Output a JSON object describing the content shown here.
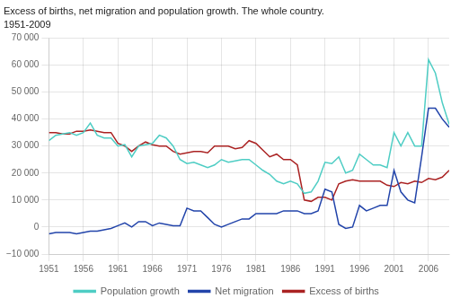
{
  "chart_data": {
    "type": "line",
    "title": "Excess of births, net migration and population growth. The whole country.",
    "subtitle": "1951-2009",
    "x": [
      1951,
      1952,
      1953,
      1954,
      1955,
      1956,
      1957,
      1958,
      1959,
      1960,
      1961,
      1962,
      1963,
      1964,
      1965,
      1966,
      1967,
      1968,
      1969,
      1970,
      1971,
      1972,
      1973,
      1974,
      1975,
      1976,
      1977,
      1978,
      1979,
      1980,
      1981,
      1982,
      1983,
      1984,
      1985,
      1986,
      1987,
      1988,
      1989,
      1990,
      1991,
      1992,
      1993,
      1994,
      1995,
      1996,
      1997,
      1998,
      1999,
      2000,
      2001,
      2002,
      2003,
      2004,
      2005,
      2006,
      2007,
      2008,
      2009
    ],
    "series": [
      {
        "name": "Population growth",
        "color": "#4ECDC4",
        "values": [
          32000,
          34000,
          34500,
          35000,
          34000,
          35000,
          38500,
          34000,
          33000,
          33000,
          30000,
          30500,
          26000,
          30000,
          30500,
          31000,
          34000,
          33000,
          30000,
          25000,
          23500,
          24000,
          23000,
          22000,
          23000,
          25000,
          24000,
          24500,
          25000,
          25000,
          23000,
          21000,
          19500,
          17000,
          16000,
          17000,
          16000,
          12500,
          13000,
          17000,
          24000,
          23500,
          26000,
          20000,
          21000,
          27000,
          25000,
          23000,
          23000,
          22000,
          35000,
          30000,
          35000,
          30000,
          30000,
          62000,
          57000,
          46000,
          38000
        ]
      },
      {
        "name": "Net migration",
        "color": "#2244AA",
        "values": [
          -2500,
          -2000,
          -2000,
          -2000,
          -2500,
          -2000,
          -1500,
          -1500,
          -1000,
          -500,
          500,
          1500,
          0,
          2000,
          2000,
          500,
          1500,
          1000,
          500,
          500,
          7000,
          6000,
          6000,
          3500,
          1000,
          0,
          1000,
          2000,
          3000,
          3000,
          5000,
          5000,
          5000,
          5000,
          6000,
          6000,
          6000,
          5000,
          5000,
          6000,
          14000,
          13000,
          1000,
          -500,
          0,
          8000,
          6000,
          7000,
          8000,
          8000,
          21000,
          13000,
          10000,
          9000,
          26000,
          44000,
          44000,
          40000,
          37000
        ]
      },
      {
        "name": "Excess of births",
        "color": "#AA2222",
        "values": [
          35000,
          35000,
          34500,
          34500,
          35500,
          35500,
          36000,
          35500,
          35000,
          35000,
          31000,
          30000,
          28000,
          30000,
          31500,
          30500,
          30000,
          30000,
          28000,
          27000,
          27500,
          28000,
          28000,
          27500,
          30000,
          30000,
          30000,
          29000,
          29500,
          32000,
          31000,
          28500,
          26000,
          27000,
          25000,
          25000,
          23000,
          10000,
          9500,
          11000,
          11000,
          10000,
          16000,
          17000,
          17500,
          17000,
          17000,
          17000,
          17000,
          15500,
          15000,
          16500,
          16000,
          17000,
          16500,
          18000,
          17500,
          18500,
          21000
        ]
      }
    ],
    "xlim": [
      1951,
      2009
    ],
    "xticks": [
      1951,
      1956,
      1961,
      1966,
      1971,
      1976,
      1981,
      1986,
      1991,
      1996,
      2001,
      2006
    ],
    "ylim": [
      -10000,
      70000
    ],
    "yticks": [
      {
        "value": -10000,
        "label": "−10 000"
      },
      0,
      {
        "value": 10000,
        "label": "10 000"
      },
      {
        "value": 20000,
        "label": "20 000"
      },
      {
        "value": 30000,
        "label": "30 000"
      },
      {
        "value": 40000,
        "label": "40 000"
      },
      {
        "value": 50000,
        "label": "50 000"
      },
      {
        "value": 60000,
        "label": "60 000"
      },
      {
        "value": 70000,
        "label": "70 000"
      }
    ],
    "grid": true,
    "legend": "bottom"
  }
}
